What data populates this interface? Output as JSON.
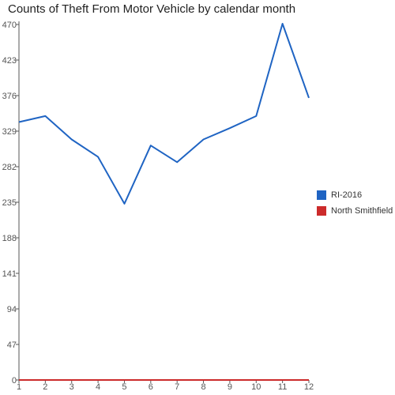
{
  "chart_data": {
    "type": "line",
    "title": "Counts of Theft From Motor Vehicle by calendar month",
    "xlabel": "",
    "ylabel": "",
    "x": [
      1,
      2,
      3,
      4,
      5,
      6,
      7,
      8,
      9,
      10,
      11,
      12
    ],
    "x_ticks": [
      "1",
      "2",
      "3",
      "4",
      "5",
      "6",
      "7",
      "8",
      "9",
      "10",
      "11",
      "12"
    ],
    "y_ticks": [
      "0",
      "47",
      "94",
      "141",
      "188",
      "235",
      "282",
      "329",
      "376",
      "423",
      "470"
    ],
    "ylim": [
      0,
      470
    ],
    "grid": false,
    "legend_position": "right",
    "series": [
      {
        "name": "RI-2016",
        "color": "#1f64c3",
        "values": [
          341,
          349,
          318,
          295,
          233,
          310,
          288,
          318,
          333,
          349,
          471,
          373
        ]
      },
      {
        "name": "North Smithfield",
        "color": "#cc2b2b",
        "values": [
          0,
          0,
          0,
          0,
          0,
          0,
          0,
          0,
          0,
          0,
          0,
          0
        ]
      }
    ]
  }
}
